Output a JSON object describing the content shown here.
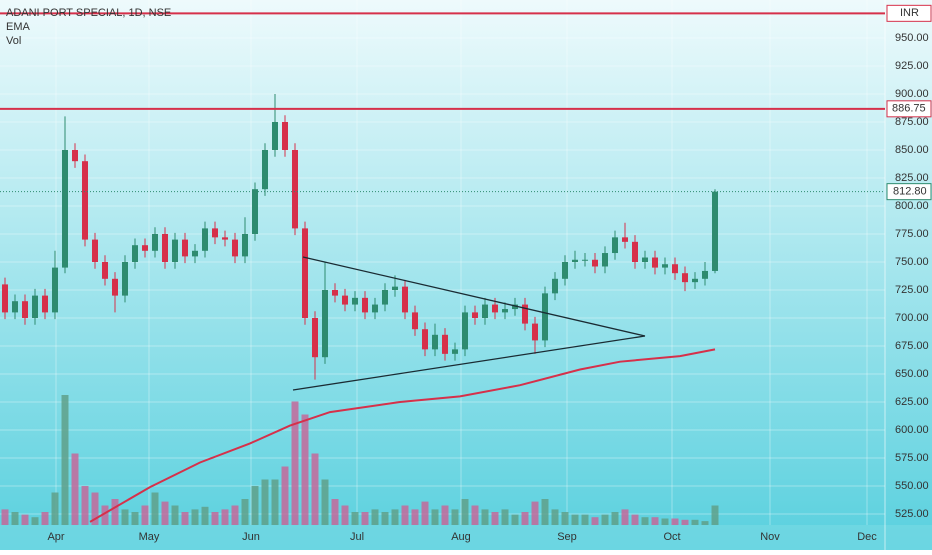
{
  "chart_data": {
    "type": "candlestick",
    "title": "ADANI PORT SPECIAL, 1D, NSE",
    "currency": "INR",
    "xlim": [
      0,
      177
    ],
    "ylim": [
      515.2,
      983.9
    ],
    "xticks": [
      {
        "value": 11.2,
        "label": "Apr"
      },
      {
        "value": 29.8,
        "label": "May"
      },
      {
        "value": 50.2,
        "label": "Jun"
      },
      {
        "value": 71.4,
        "label": "Jul"
      },
      {
        "value": 92.2,
        "label": "Aug"
      },
      {
        "value": 113.4,
        "label": "Sep"
      },
      {
        "value": 134.4,
        "label": "Oct"
      },
      {
        "value": 154,
        "label": "Nov"
      },
      {
        "value": 173.4,
        "label": "Dec"
      }
    ],
    "yticks": [
      {
        "value": 525,
        "label": "525.00"
      },
      {
        "value": 550,
        "label": "550.00"
      },
      {
        "value": 575,
        "label": "575.00"
      },
      {
        "value": 600,
        "label": "600.00"
      },
      {
        "value": 625,
        "label": "625.00"
      },
      {
        "value": 650,
        "label": "650.00"
      },
      {
        "value": 675,
        "label": "675.00"
      },
      {
        "value": 700,
        "label": "700.00"
      },
      {
        "value": 725,
        "label": "725.00"
      },
      {
        "value": 750,
        "label": "750.00"
      },
      {
        "value": 775,
        "label": "775.00"
      },
      {
        "value": 800,
        "label": "800.00"
      },
      {
        "value": 825,
        "label": "825.00"
      },
      {
        "value": 850,
        "label": "850.00"
      },
      {
        "value": 875,
        "label": "875.00"
      },
      {
        "value": 900,
        "label": "900.00"
      },
      {
        "value": 925,
        "label": "925.00"
      },
      {
        "value": 950,
        "label": "950.00"
      }
    ],
    "grid": true,
    "up_color": "#2e8b6f",
    "down_color": "#d6304a",
    "x": [
      1,
      3,
      5,
      7,
      9,
      11,
      13,
      15,
      17,
      19,
      21,
      23,
      25,
      27,
      29,
      31,
      33,
      35,
      37,
      39,
      41,
      43,
      45,
      47,
      49,
      51,
      53,
      55,
      57,
      59,
      61,
      63,
      65,
      67,
      69,
      71,
      73,
      75,
      77,
      79,
      81,
      83,
      85,
      87,
      89,
      91,
      93,
      95,
      97,
      99,
      101,
      103,
      105,
      107,
      109,
      111,
      113,
      115,
      117,
      119,
      121,
      123,
      125,
      127,
      129,
      131,
      133,
      135,
      137,
      139,
      141,
      143
    ],
    "open": [
      730,
      705,
      715,
      700,
      720,
      705,
      745,
      850,
      840,
      770,
      750,
      735,
      720,
      750,
      765,
      760,
      775,
      750,
      770,
      755,
      760,
      780,
      772,
      770,
      755,
      775,
      815,
      850,
      875,
      850,
      780,
      700,
      665,
      725,
      720,
      712,
      718,
      705,
      712,
      725,
      728,
      705,
      690,
      672,
      685,
      668,
      672,
      705,
      700,
      712,
      705,
      708,
      712,
      695,
      680,
      722,
      735,
      750,
      752,
      752,
      746,
      758,
      772,
      768,
      750,
      754,
      745,
      748,
      740,
      732,
      735,
      742
    ],
    "high": [
      736,
      721,
      721,
      726,
      726,
      760,
      880,
      856,
      846,
      776,
      756,
      741,
      756,
      771,
      771,
      781,
      781,
      776,
      776,
      766,
      786,
      786,
      778,
      776,
      790,
      821,
      856,
      900,
      881,
      856,
      786,
      706,
      750,
      731,
      726,
      724,
      724,
      718,
      731,
      738,
      734,
      711,
      696,
      695,
      691,
      678,
      711,
      711,
      718,
      718,
      714,
      718,
      718,
      701,
      728,
      741,
      756,
      760,
      758,
      758,
      764,
      778,
      785,
      774,
      760,
      760,
      754,
      754,
      746,
      741,
      750,
      815
    ],
    "low": [
      699,
      699,
      694,
      694,
      699,
      699,
      740,
      834,
      764,
      744,
      729,
      705,
      714,
      744,
      754,
      754,
      744,
      744,
      749,
      749,
      754,
      766,
      764,
      749,
      749,
      769,
      809,
      844,
      844,
      774,
      694,
      645,
      659,
      714,
      706,
      706,
      699,
      699,
      706,
      719,
      699,
      684,
      666,
      666,
      662,
      662,
      666,
      694,
      694,
      699,
      699,
      702,
      689,
      668,
      674,
      716,
      729,
      744,
      746,
      740,
      740,
      752,
      762,
      744,
      744,
      739,
      739,
      734,
      724,
      726,
      729,
      740
    ],
    "close": [
      705,
      715,
      700,
      720,
      705,
      745,
      850,
      840,
      770,
      750,
      735,
      720,
      750,
      765,
      760,
      775,
      750,
      770,
      755,
      760,
      780,
      772,
      770,
      755,
      775,
      815,
      850,
      875,
      850,
      780,
      700,
      665,
      725,
      720,
      712,
      718,
      705,
      712,
      725,
      728,
      705,
      690,
      672,
      685,
      668,
      672,
      705,
      700,
      712,
      705,
      708,
      712,
      695,
      680,
      722,
      735,
      750,
      752,
      752,
      746,
      758,
      772,
      768,
      750,
      754,
      745,
      748,
      740,
      732,
      735,
      742,
      812.8
    ],
    "ema": {
      "name": "EMA",
      "color": "#d6304a",
      "x": [
        18,
        30,
        40,
        50,
        58,
        66,
        80,
        92,
        104,
        116,
        124,
        136,
        143
      ],
      "values": [
        518,
        549,
        571,
        588,
        604,
        616,
        625,
        630,
        640,
        654,
        661,
        666,
        672
      ]
    },
    "volume": {
      "name": "Vol",
      "values": [
        12,
        10,
        8,
        6,
        10,
        25,
        100,
        55,
        30,
        25,
        15,
        20,
        12,
        10,
        15,
        25,
        18,
        15,
        10,
        12,
        14,
        10,
        12,
        15,
        20,
        30,
        35,
        35,
        45,
        95,
        85,
        55,
        35,
        20,
        15,
        10,
        10,
        12,
        10,
        12,
        15,
        12,
        18,
        12,
        15,
        12,
        20,
        15,
        12,
        10,
        12,
        8,
        10,
        18,
        20,
        12,
        10,
        8,
        8,
        6,
        8,
        10,
        12,
        8,
        6,
        6,
        5,
        5,
        4,
        4,
        3,
        15
      ]
    },
    "levels": [
      {
        "value": 972,
        "color": "#d6304a"
      },
      {
        "value": 886.75,
        "color": "#d6304a"
      }
    ],
    "last_price": {
      "value": 812.8,
      "label": "812.80"
    }
  }
}
